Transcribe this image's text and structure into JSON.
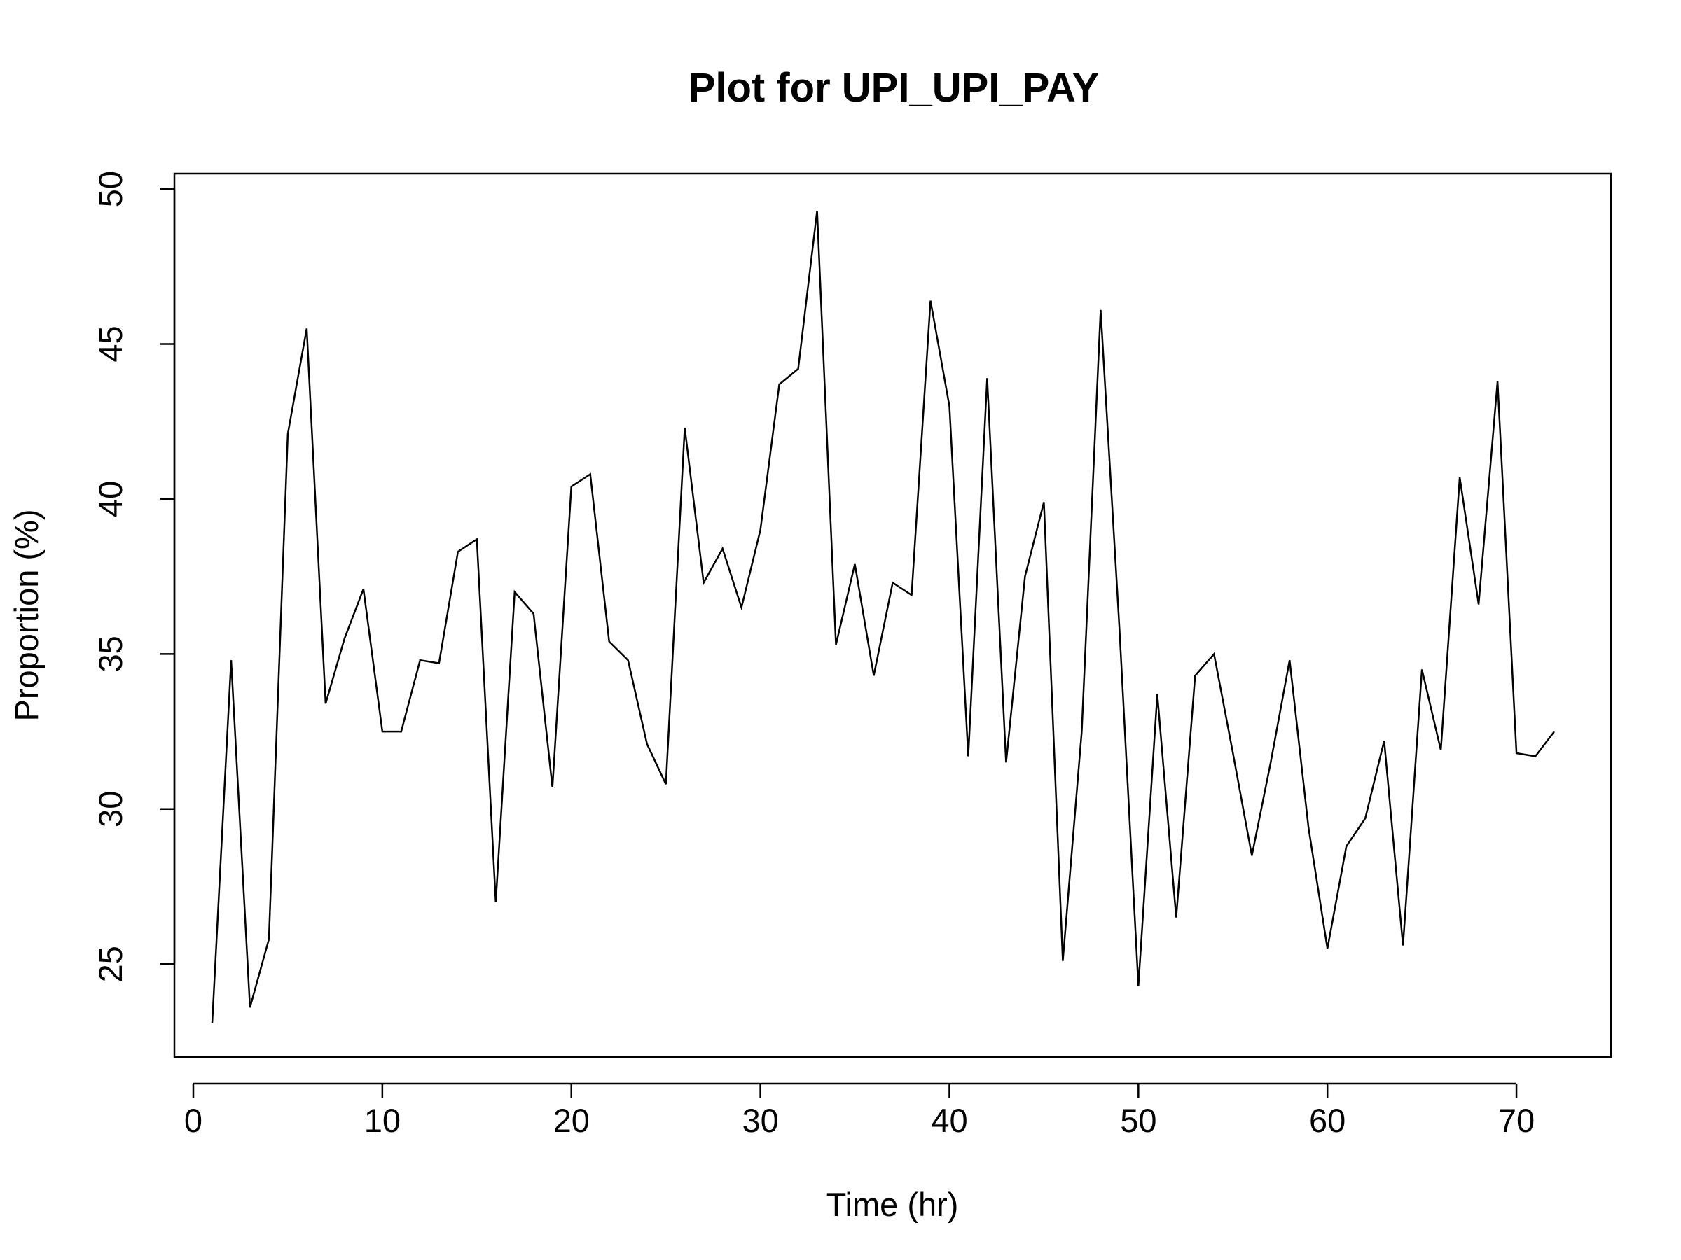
{
  "chart_data": {
    "type": "line",
    "title": "Plot for UPI_UPI_PAY",
    "xlabel": "Time (hr)",
    "ylabel": "Proportion (%)",
    "xlim": [
      -1,
      75
    ],
    "ylim": [
      22,
      50.5
    ],
    "xticks": [
      0,
      10,
      20,
      30,
      40,
      50,
      60,
      70
    ],
    "yticks": [
      25,
      30,
      35,
      40,
      45,
      50
    ],
    "grid": false,
    "legend": "none",
    "line_color": "#000000",
    "x": [
      1,
      2,
      3,
      4,
      5,
      6,
      7,
      8,
      9,
      10,
      11,
      12,
      13,
      14,
      15,
      16,
      17,
      18,
      19,
      20,
      21,
      22,
      23,
      24,
      25,
      26,
      27,
      28,
      29,
      30,
      31,
      32,
      33,
      34,
      35,
      36,
      37,
      38,
      39,
      40,
      41,
      42,
      43,
      44,
      45,
      46,
      47,
      48,
      49,
      50,
      51,
      52,
      53,
      54,
      55,
      56,
      57,
      58,
      59,
      60,
      61,
      62,
      63,
      64,
      65,
      66,
      67,
      68,
      69,
      70,
      71,
      72
    ],
    "y": [
      23.1,
      34.8,
      23.6,
      25.8,
      42.1,
      45.5,
      33.4,
      35.5,
      37.1,
      32.5,
      32.5,
      34.8,
      34.7,
      38.3,
      38.7,
      27.0,
      37.0,
      36.3,
      30.7,
      40.4,
      40.8,
      35.4,
      34.8,
      32.1,
      30.8,
      42.3,
      37.3,
      38.4,
      36.5,
      39.0,
      43.7,
      44.2,
      49.3,
      35.3,
      37.9,
      34.3,
      37.3,
      36.9,
      46.4,
      43.0,
      31.7,
      43.9,
      31.5,
      37.5,
      39.9,
      25.1,
      32.5,
      46.1,
      35.8,
      24.3,
      33.7,
      26.5,
      34.3,
      35.0,
      31.8,
      28.5,
      31.5,
      34.8,
      29.4,
      25.5,
      28.8,
      29.7,
      32.2,
      25.6,
      34.5,
      31.9,
      40.7,
      36.6,
      43.8,
      31.8,
      31.7,
      32.5
    ]
  }
}
